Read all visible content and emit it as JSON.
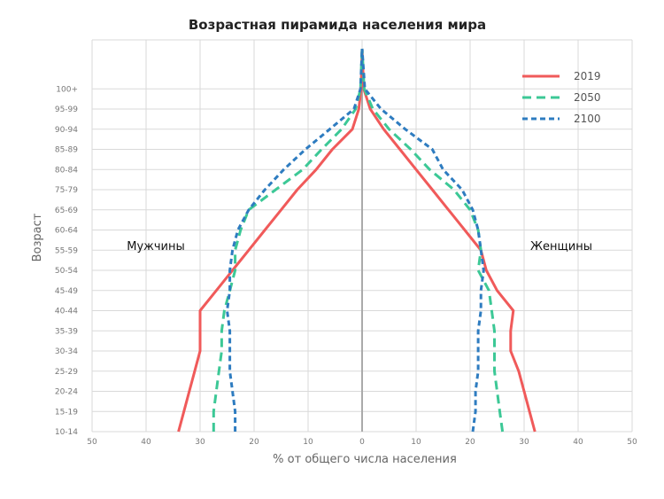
{
  "chart_data": {
    "type": "line",
    "title": "Возрастная пирамида населения мира",
    "xlabel": "% от общего числа населения",
    "ylabel": "Возраст",
    "left_label": "Мужчины",
    "right_label": "Женщины",
    "xlim": [
      -50,
      50
    ],
    "x_ticks": [
      -50,
      -40,
      -30,
      -20,
      -10,
      0,
      10,
      20,
      30,
      40,
      50
    ],
    "x_tick_labels": [
      "50",
      "40",
      "30",
      "20",
      "10",
      "0",
      "10",
      "20",
      "30",
      "40",
      "50"
    ],
    "categories": [
      "10-14",
      "15-19",
      "20-24",
      "25-29",
      "30-34",
      "35-39",
      "40-44",
      "45-49",
      "50-54",
      "55-59",
      "60-64",
      "65-69",
      "75-79",
      "80-84",
      "85-89",
      "90-94",
      "95-99",
      "100+"
    ],
    "grid": true,
    "legend_position": "top-right",
    "series": [
      {
        "name": "2019",
        "color": "#f05a5a",
        "dash": "solid",
        "male": [
          -34,
          -33,
          -32,
          -31,
          -30,
          -30,
          -30,
          -27,
          -24,
          -21,
          -18,
          -15,
          -12,
          -8.5,
          -5.5,
          -1.8,
          -0.6,
          -0.2
        ],
        "female": [
          32,
          31,
          30,
          29,
          27.5,
          27.5,
          28,
          25,
          23,
          22,
          19,
          16,
          13,
          10,
          7,
          4,
          1.5,
          0.3
        ]
      },
      {
        "name": "2050",
        "color": "#3cc896",
        "dash": "dash",
        "male": [
          -27.5,
          -27.5,
          -27,
          -26.5,
          -26,
          -26,
          -25.5,
          -24.5,
          -23.5,
          -23.5,
          -22.5,
          -21,
          -16,
          -11,
          -7.5,
          -3.8,
          -1.2,
          -0.3
        ],
        "female": [
          26,
          25.5,
          25,
          24.5,
          24.5,
          24.5,
          24,
          23.5,
          21.5,
          22,
          21.5,
          20,
          17,
          12.5,
          9,
          5,
          2,
          0.4
        ]
      },
      {
        "name": "2100",
        "color": "#2e7cc0",
        "dash": "dot",
        "male": [
          -23.5,
          -23.5,
          -24,
          -24.5,
          -24.5,
          -24.5,
          -25,
          -24.5,
          -24.5,
          -24,
          -23,
          -21,
          -18,
          -14.5,
          -10.5,
          -6,
          -1.5,
          -0.3
        ],
        "female": [
          20.5,
          21,
          21,
          21.5,
          21.5,
          21.5,
          22,
          22,
          22.5,
          22,
          21.5,
          20.5,
          18.5,
          15,
          13,
          8,
          3.5,
          0.5
        ]
      }
    ]
  }
}
